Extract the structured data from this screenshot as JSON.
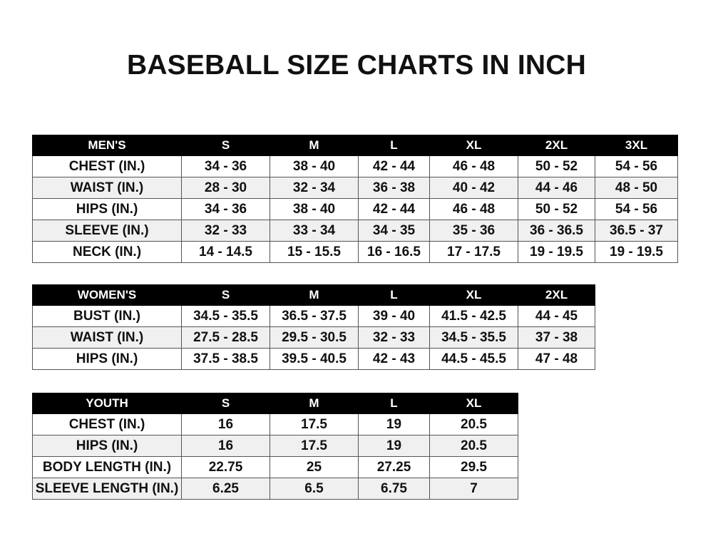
{
  "title": "BASEBALL SIZE CHARTS IN INCH",
  "tables": [
    {
      "id": "men",
      "headers": [
        "MEN'S",
        "S",
        "M",
        "L",
        "XL",
        "2XL",
        "3XL"
      ],
      "rows": [
        [
          "CHEST (IN.)",
          "34 - 36",
          "38 - 40",
          "42 - 44",
          "46 - 48",
          "50 - 52",
          "54 - 56"
        ],
        [
          "WAIST (IN.)",
          "28 - 30",
          "32 - 34",
          "36 - 38",
          "40 - 42",
          "44 - 46",
          "48 - 50"
        ],
        [
          "HIPS (IN.)",
          "34 - 36",
          "38 - 40",
          "42 - 44",
          "46 - 48",
          "50 - 52",
          "54 - 56"
        ],
        [
          "SLEEVE (IN.)",
          "32 - 33",
          "33 - 34",
          "34 - 35",
          "35 - 36",
          "36 - 36.5",
          "36.5 - 37"
        ],
        [
          "NECK (IN.)",
          "14 - 14.5",
          "15 - 15.5",
          "16 - 16.5",
          "17 - 17.5",
          "19 - 19.5",
          "19 - 19.5"
        ]
      ]
    },
    {
      "id": "women",
      "headers": [
        "WOMEN'S",
        "S",
        "M",
        "L",
        "XL",
        "2XL"
      ],
      "rows": [
        [
          "BUST (IN.)",
          "34.5 - 35.5",
          "36.5 - 37.5",
          "39 - 40",
          "41.5 - 42.5",
          "44 - 45"
        ],
        [
          "WAIST (IN.)",
          "27.5 - 28.5",
          "29.5 - 30.5",
          "32 - 33",
          "34.5 - 35.5",
          "37 - 38"
        ],
        [
          "HIPS (IN.)",
          "37.5 - 38.5",
          "39.5 - 40.5",
          "42 - 43",
          "44.5 - 45.5",
          "47 - 48"
        ]
      ]
    },
    {
      "id": "youth",
      "headers": [
        "YOUTH",
        "S",
        "M",
        "L",
        "XL"
      ],
      "rows": [
        [
          "CHEST (IN.)",
          "16",
          "17.5",
          "19",
          "20.5"
        ],
        [
          "HIPS (IN.)",
          "16",
          "17.5",
          "19",
          "20.5"
        ],
        [
          "BODY LENGTH (IN.)",
          "22.75",
          "25",
          "27.25",
          "29.5"
        ],
        [
          "SLEEVE LENGTH (IN.)",
          "6.25",
          "6.5",
          "6.75",
          "7"
        ]
      ]
    }
  ]
}
